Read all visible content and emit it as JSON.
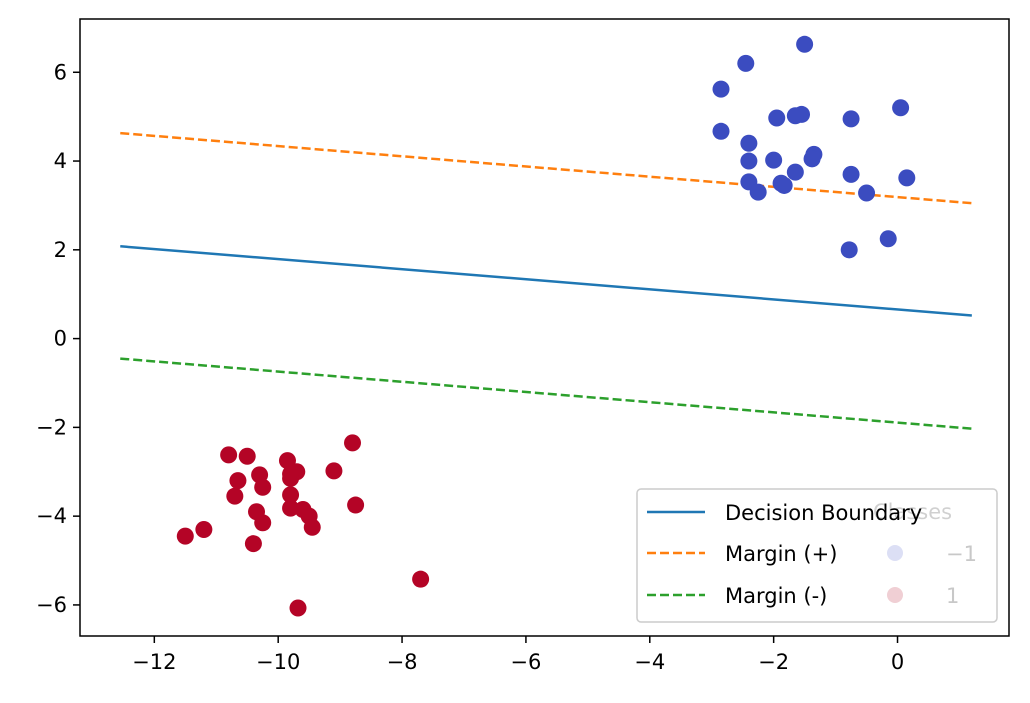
{
  "chart_data": {
    "type": "scatter",
    "title": "",
    "xlabel": "",
    "ylabel": "",
    "xlim": [
      -13.2,
      1.8
    ],
    "ylim": [
      -6.7,
      7.2
    ],
    "x_ticks": [
      -12,
      -10,
      -8,
      -6,
      -4,
      -2,
      0
    ],
    "y_ticks": [
      -6,
      -4,
      -2,
      0,
      2,
      4,
      6
    ],
    "x_tick_labels": [
      "−12",
      "−10",
      "−8",
      "−6",
      "−4",
      "−2",
      "0"
    ],
    "y_tick_labels": [
      "−6",
      "−4",
      "−2",
      "0",
      "2",
      "4",
      "6"
    ],
    "grid": false,
    "lines": [
      {
        "name": "Decision Boundary",
        "color": "#1f77b4",
        "style": "solid",
        "x": [
          -12.55,
          1.2
        ],
        "y": [
          2.08,
          0.52
        ]
      },
      {
        "name": "Margin (+)",
        "color": "#ff7f0e",
        "style": "dashed",
        "x": [
          -12.55,
          1.2
        ],
        "y": [
          4.63,
          3.05
        ]
      },
      {
        "name": "Margin (-)",
        "color": "#2ca02c",
        "style": "dashed",
        "x": [
          -12.55,
          1.2
        ],
        "y": [
          -0.45,
          -2.03
        ]
      }
    ],
    "scatter": [
      {
        "name": "−1",
        "color": "#3b4cc0",
        "points": [
          [
            -2.45,
            6.2
          ],
          [
            -1.5,
            6.63
          ],
          [
            -2.85,
            5.62
          ],
          [
            0.05,
            5.2
          ],
          [
            -1.55,
            5.05
          ],
          [
            -1.65,
            5.02
          ],
          [
            -1.95,
            4.97
          ],
          [
            -0.75,
            4.95
          ],
          [
            -2.85,
            4.67
          ],
          [
            -2.4,
            4.4
          ],
          [
            -1.35,
            4.15
          ],
          [
            -1.38,
            4.05
          ],
          [
            -2.4,
            4.0
          ],
          [
            -2.0,
            4.02
          ],
          [
            -1.65,
            3.75
          ],
          [
            -0.75,
            3.7
          ],
          [
            0.15,
            3.62
          ],
          [
            -2.4,
            3.53
          ],
          [
            -1.88,
            3.5
          ],
          [
            -1.83,
            3.45
          ],
          [
            -2.25,
            3.3
          ],
          [
            -0.5,
            3.28
          ],
          [
            -0.15,
            2.25
          ],
          [
            -0.78,
            2.0
          ]
        ]
      },
      {
        "name": "1",
        "color": "#b40426",
        "points": [
          [
            -8.8,
            -2.35
          ],
          [
            -10.8,
            -2.62
          ],
          [
            -10.5,
            -2.65
          ],
          [
            -9.85,
            -2.75
          ],
          [
            -9.1,
            -2.98
          ],
          [
            -9.7,
            -3.0
          ],
          [
            -9.8,
            -3.05
          ],
          [
            -10.3,
            -3.07
          ],
          [
            -9.8,
            -3.15
          ],
          [
            -10.65,
            -3.2
          ],
          [
            -10.25,
            -3.35
          ],
          [
            -10.7,
            -3.55
          ],
          [
            -9.8,
            -3.52
          ],
          [
            -8.75,
            -3.75
          ],
          [
            -9.8,
            -3.82
          ],
          [
            -9.6,
            -3.85
          ],
          [
            -10.35,
            -3.9
          ],
          [
            -9.5,
            -4.0
          ],
          [
            -10.25,
            -4.15
          ],
          [
            -9.45,
            -4.25
          ],
          [
            -11.2,
            -4.3
          ],
          [
            -11.5,
            -4.45
          ],
          [
            -10.4,
            -4.62
          ],
          [
            -7.7,
            -5.42
          ],
          [
            -9.68,
            -6.07
          ]
        ]
      }
    ],
    "legend": {
      "placement": "lower-right",
      "title": "Classes",
      "line_entries": [
        "Decision Boundary",
        "Margin (+)",
        "Margin (-)"
      ],
      "class_entries": [
        "−1",
        "1"
      ],
      "class_colors": [
        "#dcdff5",
        "#f0cfd4"
      ]
    }
  }
}
